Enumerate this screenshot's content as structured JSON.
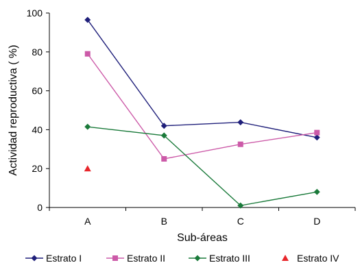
{
  "chart_data": {
    "type": "line",
    "title": "",
    "xlabel": "Sub-áreas",
    "ylabel": "Actividad reproductiva ( %)",
    "categories": [
      "A",
      "B",
      "C",
      "D"
    ],
    "ylim": [
      0,
      100
    ],
    "yticks": [
      0,
      20,
      40,
      60,
      80,
      100
    ],
    "grid": false,
    "legend_position": "bottom",
    "series": [
      {
        "name": "Estrato I",
        "color": "#1f1f7a",
        "marker": "diamond",
        "values": [
          96.5,
          42,
          43.8,
          36
        ]
      },
      {
        "name": "Estrato II",
        "color": "#cc5aa8",
        "marker": "square",
        "values": [
          79,
          25,
          32.5,
          38.5
        ]
      },
      {
        "name": "Estrato III",
        "color": "#1a7a3a",
        "marker": "diamond",
        "values": [
          41.5,
          37,
          1,
          8
        ]
      },
      {
        "name": "Estrato IV",
        "color": "#e8262b",
        "marker": "triangle",
        "values": [
          20,
          null,
          null,
          null
        ]
      }
    ]
  }
}
